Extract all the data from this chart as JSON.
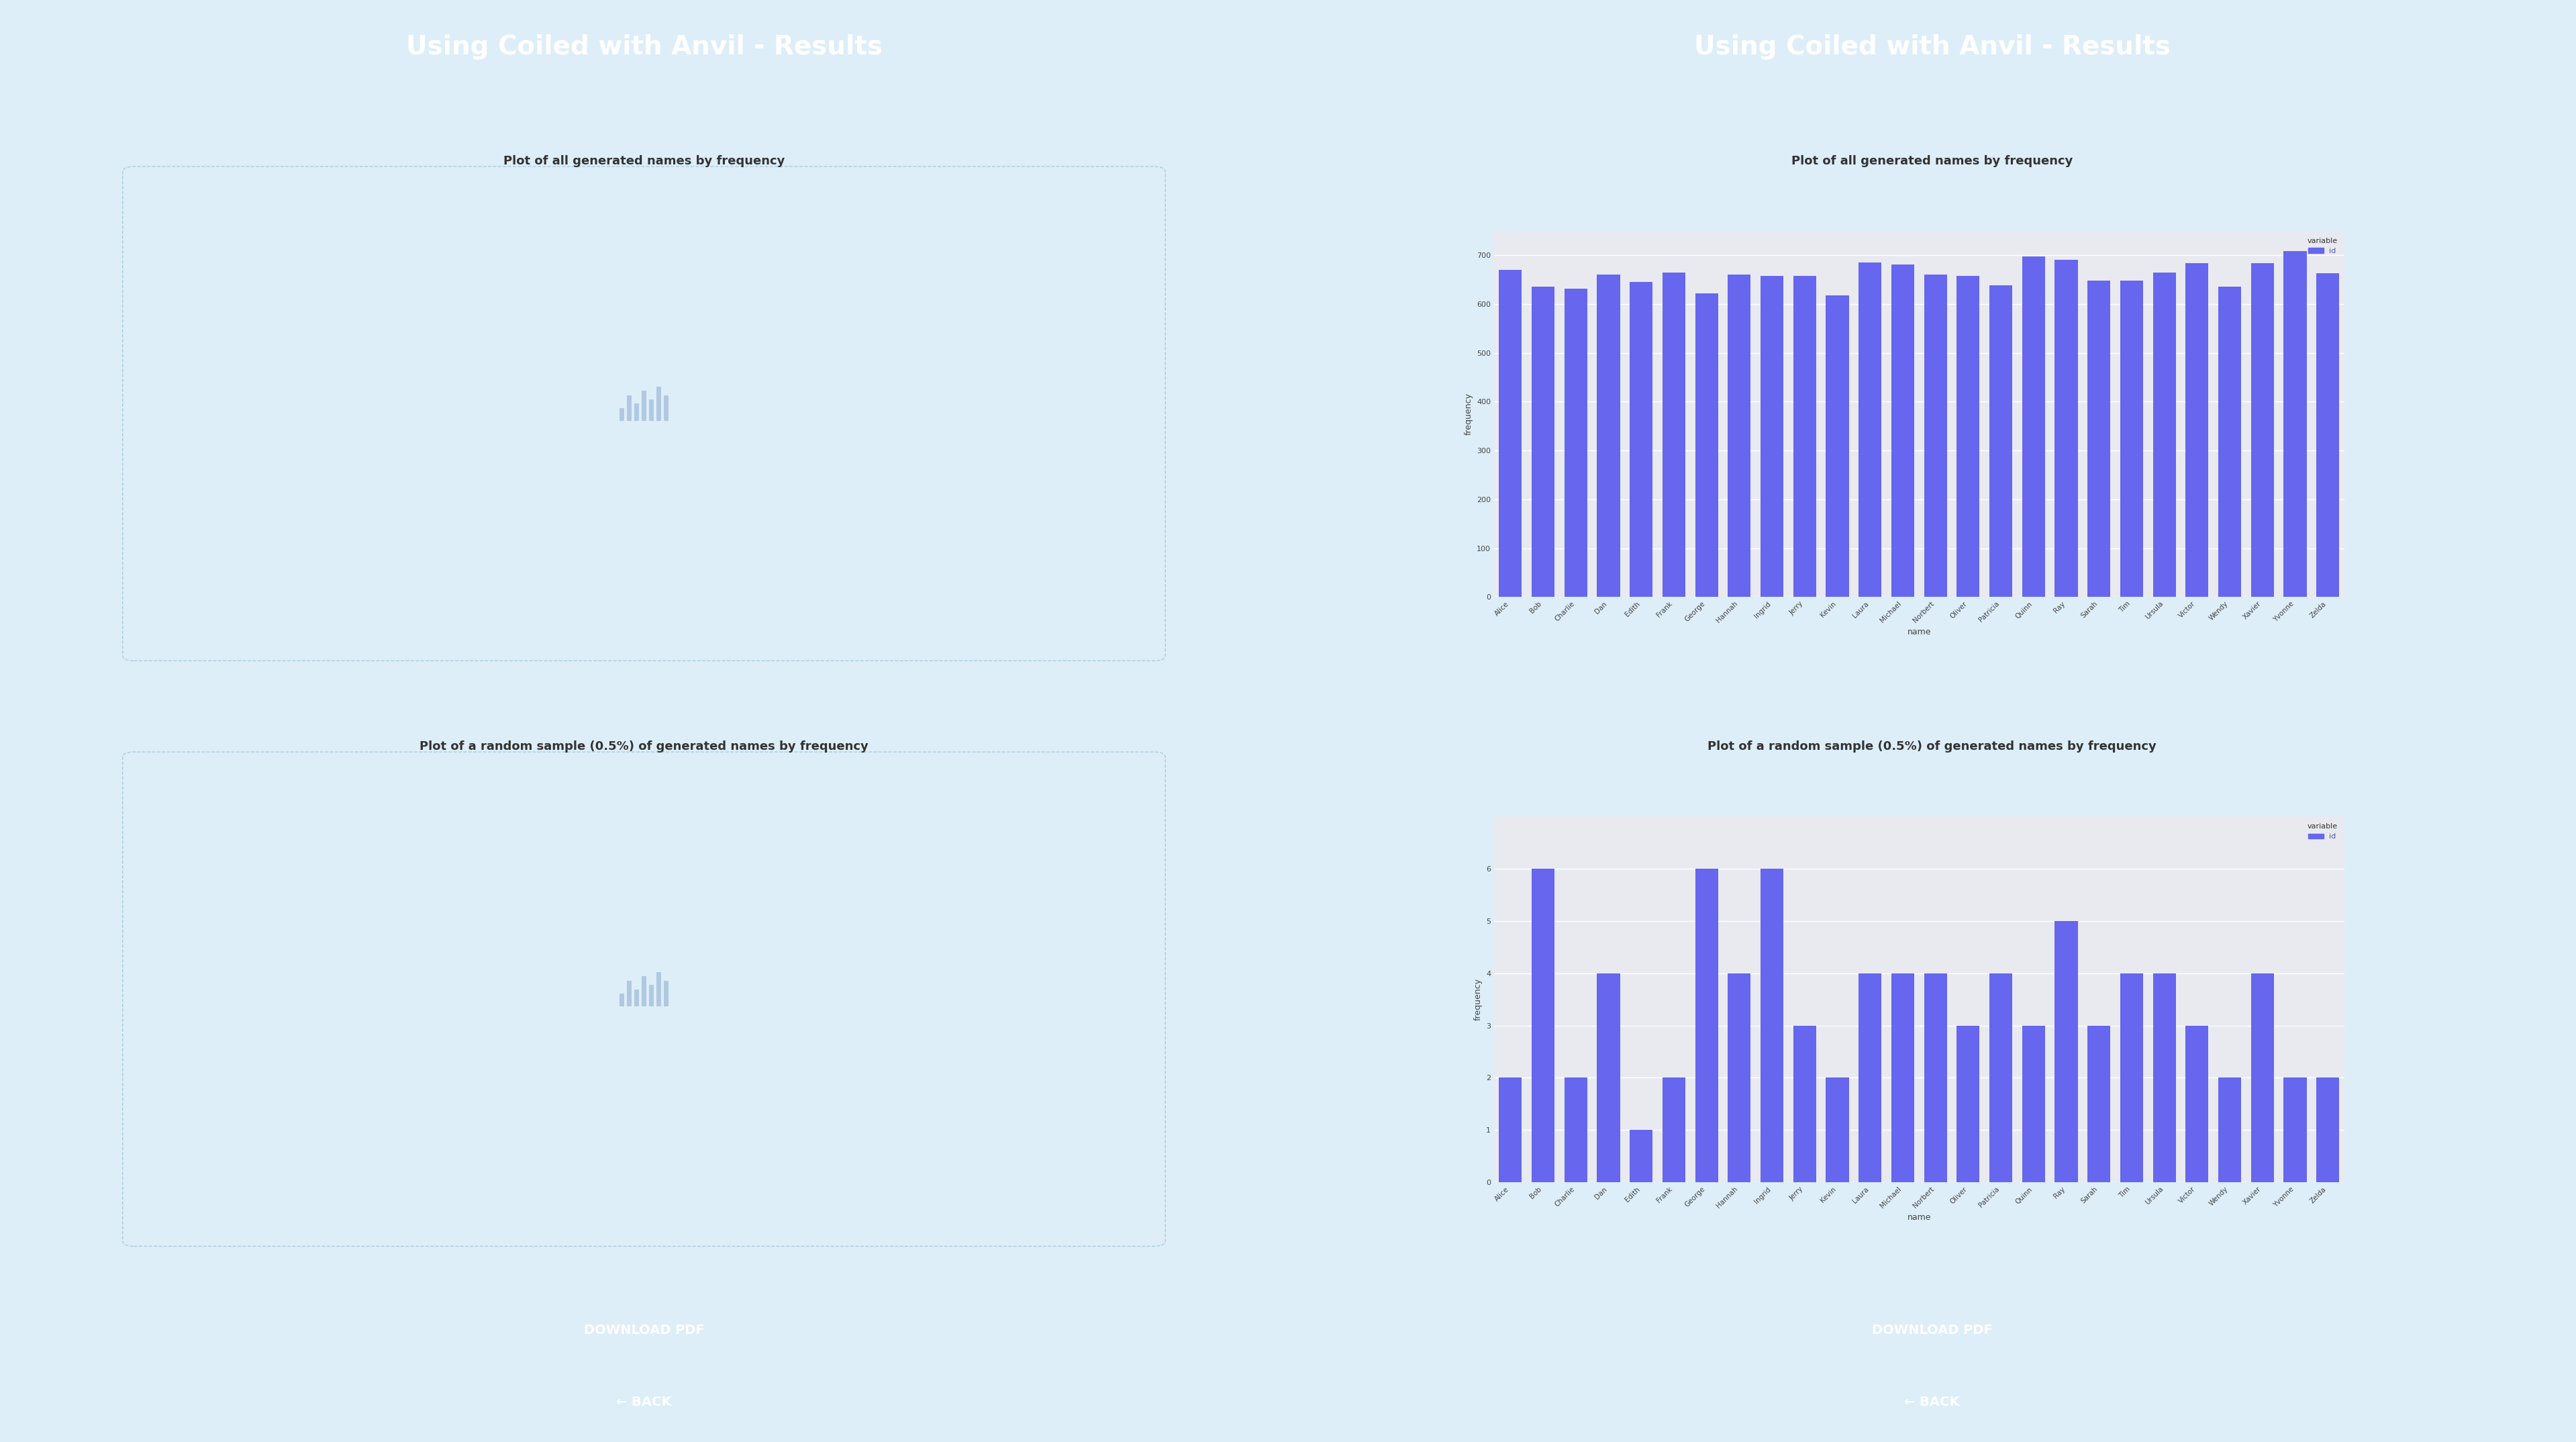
{
  "title": "Using Coiled with Anvil - Results",
  "title_color": "#ffffff",
  "title_bg_color": "#42aad4",
  "app_bg_color": "#ddeef8",
  "card_bg_color": "#ffffff",
  "card_border_color": "#cccccc",
  "plot1_title": "Plot of all generated names by frequency",
  "plot2_title": "Plot of a random sample (0.5%) of generated names by frequency",
  "names": [
    "Alice",
    "Bob",
    "Charlie",
    "Dan",
    "Edith",
    "Frank",
    "George",
    "Hannah",
    "Ingrid",
    "Jerry",
    "Kevin",
    "Laura",
    "Michael",
    "Norbert",
    "Oliver",
    "Patricia",
    "Quinn",
    "Ray",
    "Sarah",
    "Tim",
    "Ursula",
    "Victor",
    "Wendy",
    "Xavier",
    "Yvonne",
    "Zelda"
  ],
  "freq1": [
    670,
    635,
    632,
    660,
    645,
    665,
    622,
    660,
    657,
    657,
    617,
    685,
    681,
    660,
    657,
    638,
    697,
    691,
    648,
    648,
    665,
    684,
    635,
    684,
    708,
    663
  ],
  "freq2": [
    2,
    6,
    2,
    4,
    1,
    2,
    6,
    4,
    6,
    3,
    2,
    4,
    4,
    4,
    3,
    4,
    3,
    5,
    3,
    4,
    4,
    3,
    2,
    4,
    2,
    2
  ],
  "bar_color": "#6666ee",
  "bar_color_light": "#7777ff",
  "plot_bg_color": "#e8eaf0",
  "xlabel": "name",
  "ylabel": "frequency",
  "legend_title": "variable",
  "legend_label": "id",
  "legend_color": "#6666ee",
  "download_btn_color": "#42aad4",
  "download_btn_text": "DOWNLOAD PDF",
  "back_btn_color": "#f5a623",
  "back_btn_text": "← BACK",
  "btn_text_color": "#ffffff",
  "divider_color": "#222222",
  "left_placeholder_color": "#c8d8e8",
  "ylim1": [
    0,
    750
  ],
  "ylim2": [
    0,
    7
  ],
  "yticks1": [
    0,
    100,
    200,
    300,
    400,
    500,
    600,
    700
  ],
  "yticks2": [
    0,
    1,
    2,
    3,
    4,
    5,
    6
  ]
}
